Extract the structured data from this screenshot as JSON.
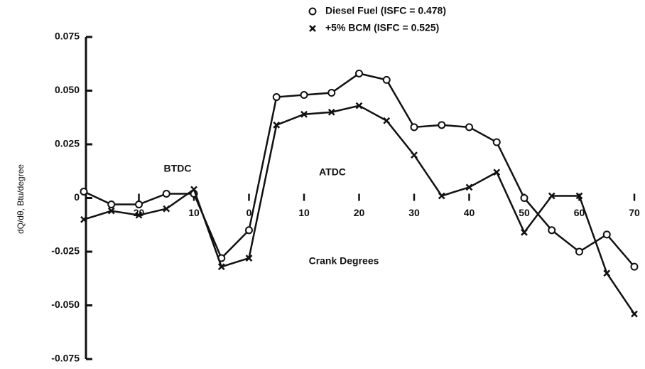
{
  "chart_data": {
    "type": "line",
    "x": [
      -30,
      -25,
      -20,
      -15,
      -10,
      -5,
      0,
      5,
      10,
      15,
      20,
      25,
      30,
      35,
      40,
      45,
      50,
      55,
      60,
      65,
      70
    ],
    "series": [
      {
        "name": "Diesel Fuel (ISFC = 0.478)",
        "color": "#111111",
        "marker": "o",
        "values": [
          0.003,
          -0.003,
          -0.003,
          0.002,
          0.002,
          -0.028,
          -0.015,
          0.047,
          0.048,
          0.049,
          0.058,
          0.055,
          0.033,
          0.034,
          0.033,
          0.026,
          0.0,
          -0.015,
          -0.025,
          -0.017,
          -0.032
        ]
      },
      {
        "name": "+5% BCM (ISFC = 0.525)",
        "color": "#111111",
        "marker": "x",
        "values": [
          -0.01,
          -0.006,
          -0.008,
          -0.005,
          0.004,
          -0.032,
          -0.028,
          0.034,
          0.039,
          0.04,
          0.043,
          0.036,
          0.02,
          0.001,
          0.005,
          0.012,
          -0.016,
          0.001,
          0.001,
          -0.035,
          -0.054
        ]
      }
    ],
    "xlabel": "Crank Degrees",
    "ylabel": "dQ/dθ, Btu/degree",
    "annotations": [
      "BTDC",
      "ATDC"
    ],
    "xlim": [
      -30,
      70
    ],
    "xticks": [
      {
        "value": -20,
        "label": "20"
      },
      {
        "value": -10,
        "label": "10"
      },
      0,
      10,
      20,
      30,
      40,
      50,
      60,
      70
    ],
    "ylim": [
      -0.075,
      0.075
    ],
    "yticks": [
      {
        "value": -0.075,
        "label": "-0.075"
      },
      {
        "value": -0.05,
        "label": "-0.050"
      },
      {
        "value": -0.025,
        "label": "-0.025"
      },
      0,
      {
        "value": 0.025,
        "label": "0.025"
      },
      {
        "value": 0.05,
        "label": "0.050"
      },
      {
        "value": 0.075,
        "label": "0.075"
      }
    ],
    "legend": "top"
  }
}
